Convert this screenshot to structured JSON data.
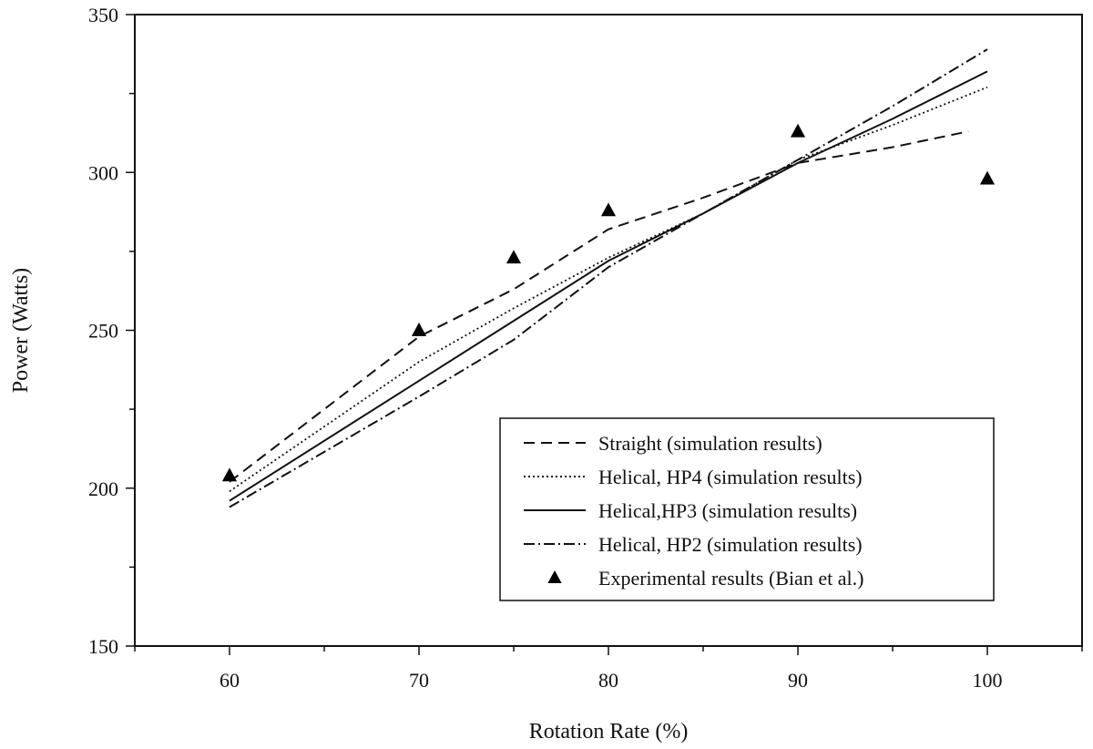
{
  "chart_data": {
    "type": "line",
    "xlabel": "Rotation Rate (%)",
    "ylabel": "Power (Watts)",
    "xlim": [
      55,
      105
    ],
    "ylim": [
      150,
      350
    ],
    "xticks": [
      60,
      70,
      80,
      90,
      100
    ],
    "yticks": [
      150,
      200,
      250,
      300,
      350
    ],
    "grid": false,
    "legend_position": "bottom-right",
    "series": [
      {
        "name": "Straight (simulation results)",
        "style": "dashed",
        "x": [
          60,
          70,
          75,
          80,
          85,
          90,
          95,
          99
        ],
        "y": [
          202,
          248,
          263,
          282,
          292,
          303,
          308,
          313
        ]
      },
      {
        "name": "Helical, HP4 (simulation results)",
        "style": "dotted",
        "x": [
          60,
          70,
          75,
          80,
          85,
          90,
          95,
          100
        ],
        "y": [
          199,
          240,
          257,
          273,
          287,
          304,
          315,
          327
        ]
      },
      {
        "name": "Helical,HP3 (simulation results)",
        "style": "solid",
        "x": [
          60,
          70,
          75,
          80,
          85,
          90,
          95,
          100
        ],
        "y": [
          196,
          234,
          253,
          272,
          287,
          303,
          317,
          332
        ]
      },
      {
        "name": "Helical, HP2 (simulation results)",
        "style": "dashdot",
        "x": [
          60,
          70,
          75,
          80,
          85,
          90,
          95,
          100
        ],
        "y": [
          194,
          229,
          247,
          270,
          287,
          304,
          321,
          339
        ]
      },
      {
        "name": "Experimental results (Bian et al.)",
        "style": "triangle-markers",
        "x": [
          60,
          70,
          75,
          80,
          90,
          100
        ],
        "y": [
          204,
          250,
          273,
          288,
          313,
          298
        ]
      }
    ]
  }
}
